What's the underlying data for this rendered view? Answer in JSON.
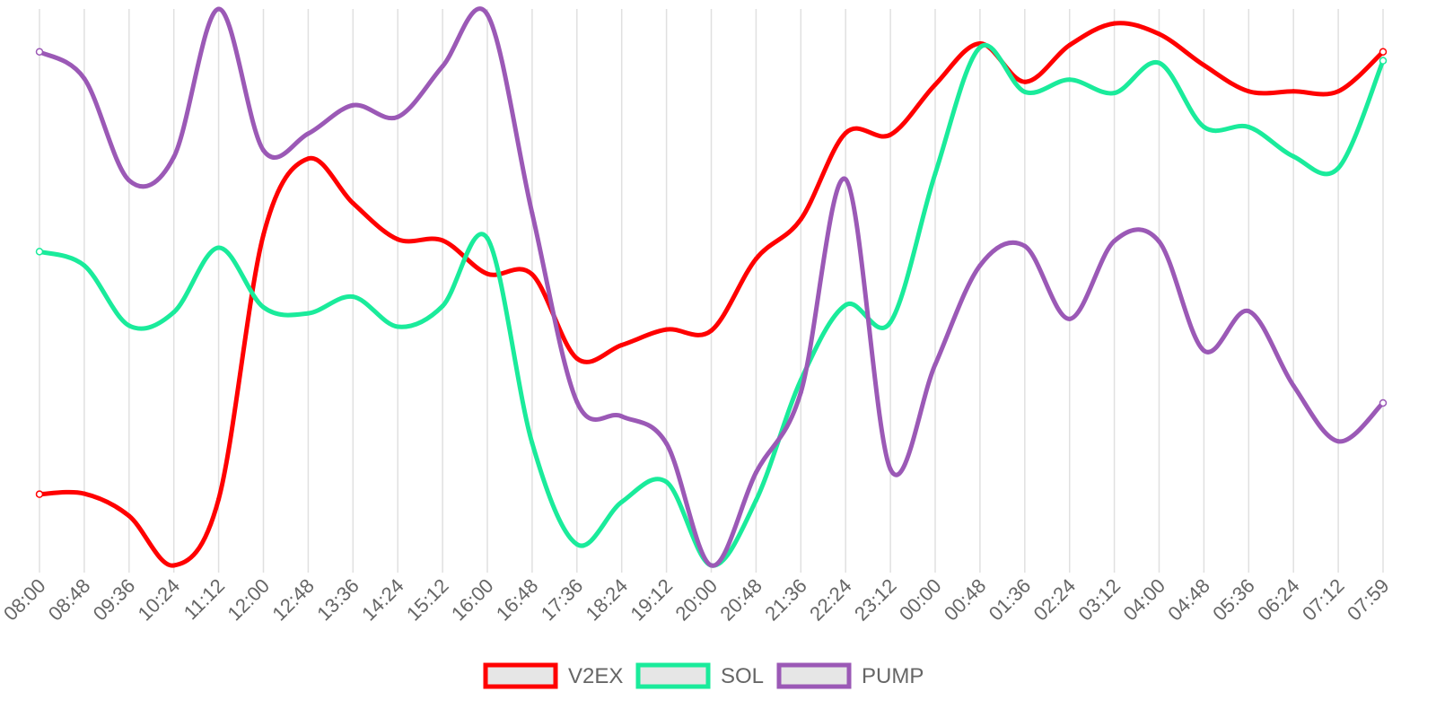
{
  "chart_data": {
    "type": "line",
    "title": "",
    "xlabel": "",
    "ylabel": "",
    "ylim": [
      0,
      100
    ],
    "grid": "vertical",
    "legend_position": "bottom-center",
    "categories": [
      "08:00",
      "08:48",
      "09:36",
      "10:24",
      "11:12",
      "12:00",
      "12:48",
      "13:36",
      "14:24",
      "15:12",
      "16:00",
      "16:48",
      "17:36",
      "18:24",
      "19:12",
      "20:00",
      "20:48",
      "21:36",
      "22:24",
      "23:12",
      "00:00",
      "00:48",
      "01:36",
      "02:24",
      "03:12",
      "04:00",
      "04:48",
      "05:36",
      "06:24",
      "07:12",
      "07:59"
    ],
    "series": [
      {
        "name": "V2EX",
        "color": "#ff0000",
        "values": [
          12.8,
          12.9,
          8.9,
          0,
          11.9,
          59.4,
          73.1,
          65.1,
          58.6,
          58.4,
          52.4,
          52.3,
          37.2,
          39.6,
          42.4,
          42.2,
          55.1,
          62.2,
          77.7,
          77.4,
          86.4,
          93.8,
          86.9,
          93.5,
          97.4,
          95.5,
          89.9,
          85.2,
          85.2,
          85.2,
          92.3
        ]
      },
      {
        "name": "SOL",
        "color": "#1aeb9b",
        "values": [
          56.4,
          53.9,
          43.1,
          45.5,
          57.1,
          46.4,
          45.3,
          48.3,
          42.9,
          46.6,
          58.8,
          22.0,
          3.8,
          11.4,
          15.0,
          0,
          11.7,
          33.3,
          46.8,
          43.7,
          70.4,
          93.1,
          85.1,
          87.3,
          84.9,
          90.3,
          78.8,
          78.8,
          73.5,
          71.4,
          90.7
        ]
      },
      {
        "name": "PUMP",
        "color": "#9b59b6",
        "values": [
          92.3,
          87.5,
          69.2,
          73.4,
          100,
          74.6,
          77.6,
          82.7,
          80.6,
          89.7,
          99.0,
          63.3,
          29.4,
          26.8,
          21.9,
          0,
          16.7,
          31.1,
          69.4,
          17.3,
          36.1,
          53.9,
          57.4,
          44.3,
          58.3,
          58.2,
          38.6,
          45.7,
          32.3,
          22.3,
          29.2
        ]
      }
    ]
  }
}
